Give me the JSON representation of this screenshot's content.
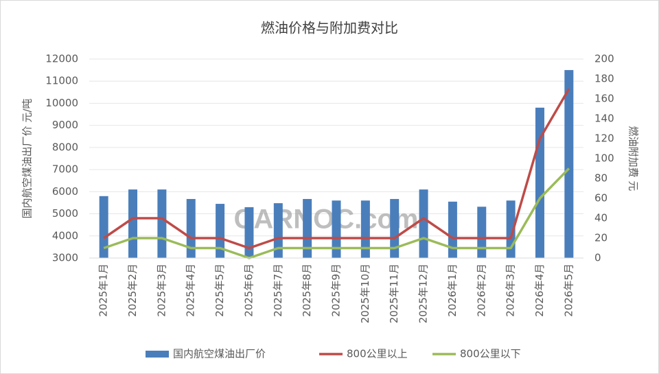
{
  "chart_data": {
    "type": "combo",
    "title": "燃油价格与附加费对比",
    "y_label": "国内航空煤油出厂价  元/吨",
    "y2_label": "燃油附加费  元",
    "watermark": "CARNOC.com",
    "categories": [
      "2025年1月",
      "2025年2月",
      "2025年3月",
      "2025年4月",
      "2025年5月",
      "2025年6月",
      "2025年7月",
      "2025年8月",
      "2025年9月",
      "2025年10月",
      "2025年11月",
      "2025年12月",
      "2026年1月",
      "2026年2月",
      "2026年3月",
      "2026年4月",
      "2026年5月"
    ],
    "series": [
      {
        "name": "国内航空煤油出厂价",
        "type": "bar",
        "axis": "y",
        "color": "#4a7ebb",
        "values": [
          5800,
          6100,
          6100,
          5670,
          5450,
          5300,
          5480,
          5670,
          5600,
          5600,
          5670,
          6100,
          5550,
          5320,
          5600,
          9800,
          11500
        ]
      },
      {
        "name": "800公里以上",
        "type": "line",
        "axis": "y2",
        "color": "#be4b48",
        "values": [
          20,
          40,
          40,
          20,
          20,
          10,
          20,
          20,
          20,
          20,
          20,
          40,
          20,
          20,
          20,
          120,
          170
        ]
      },
      {
        "name": "800公里以下",
        "type": "line",
        "axis": "y2",
        "color": "#9bbb59",
        "values": [
          10,
          20,
          20,
          10,
          10,
          0,
          10,
          10,
          10,
          10,
          10,
          20,
          10,
          10,
          10,
          60,
          90
        ]
      }
    ],
    "ylim": [
      3000,
      12000
    ],
    "yticks": [
      3000,
      4000,
      5000,
      6000,
      7000,
      8000,
      9000,
      10000,
      11000,
      12000
    ],
    "y2lim": [
      0,
      200
    ],
    "y2ticks": [
      0,
      20,
      40,
      60,
      80,
      100,
      120,
      140,
      160,
      180,
      200
    ],
    "grid": true,
    "legend": "bottom"
  }
}
